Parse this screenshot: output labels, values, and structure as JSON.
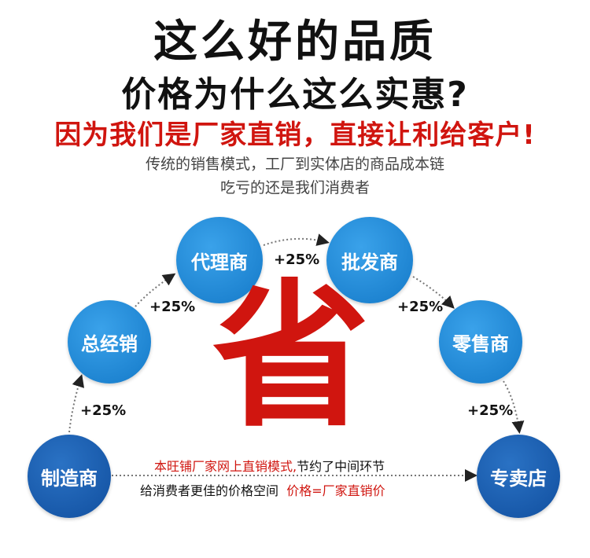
{
  "headline": {
    "line1": "这么好的品质",
    "line2": "价格为什么这么实惠?",
    "line3": "因为我们是厂家直销，直接让利给客户!"
  },
  "subtitle": {
    "line1": "传统的销售模式，工厂到实体店的商品成本链",
    "line2": "吃亏的还是我们消费者"
  },
  "chain": [
    {
      "label": "制造商"
    },
    {
      "label": "总经销"
    },
    {
      "label": "代理商"
    },
    {
      "label": "批发商"
    },
    {
      "label": "零售商"
    },
    {
      "label": "专卖店"
    }
  ],
  "markups": [
    "+25%",
    "+25%",
    "+25%",
    "+25%",
    "+25%"
  ],
  "center_char": "省",
  "note": {
    "line1_red": "本旺铺厂家网上直销模式,",
    "line1_black": "节约了中间环节",
    "line2_black": "给消费者更佳的价格空间",
    "line2_red": "价格=厂家直销价"
  },
  "colors": {
    "accent_red": "#d0150f",
    "node_light": "#1f8ad8",
    "node_dark": "#1a5aa8"
  }
}
